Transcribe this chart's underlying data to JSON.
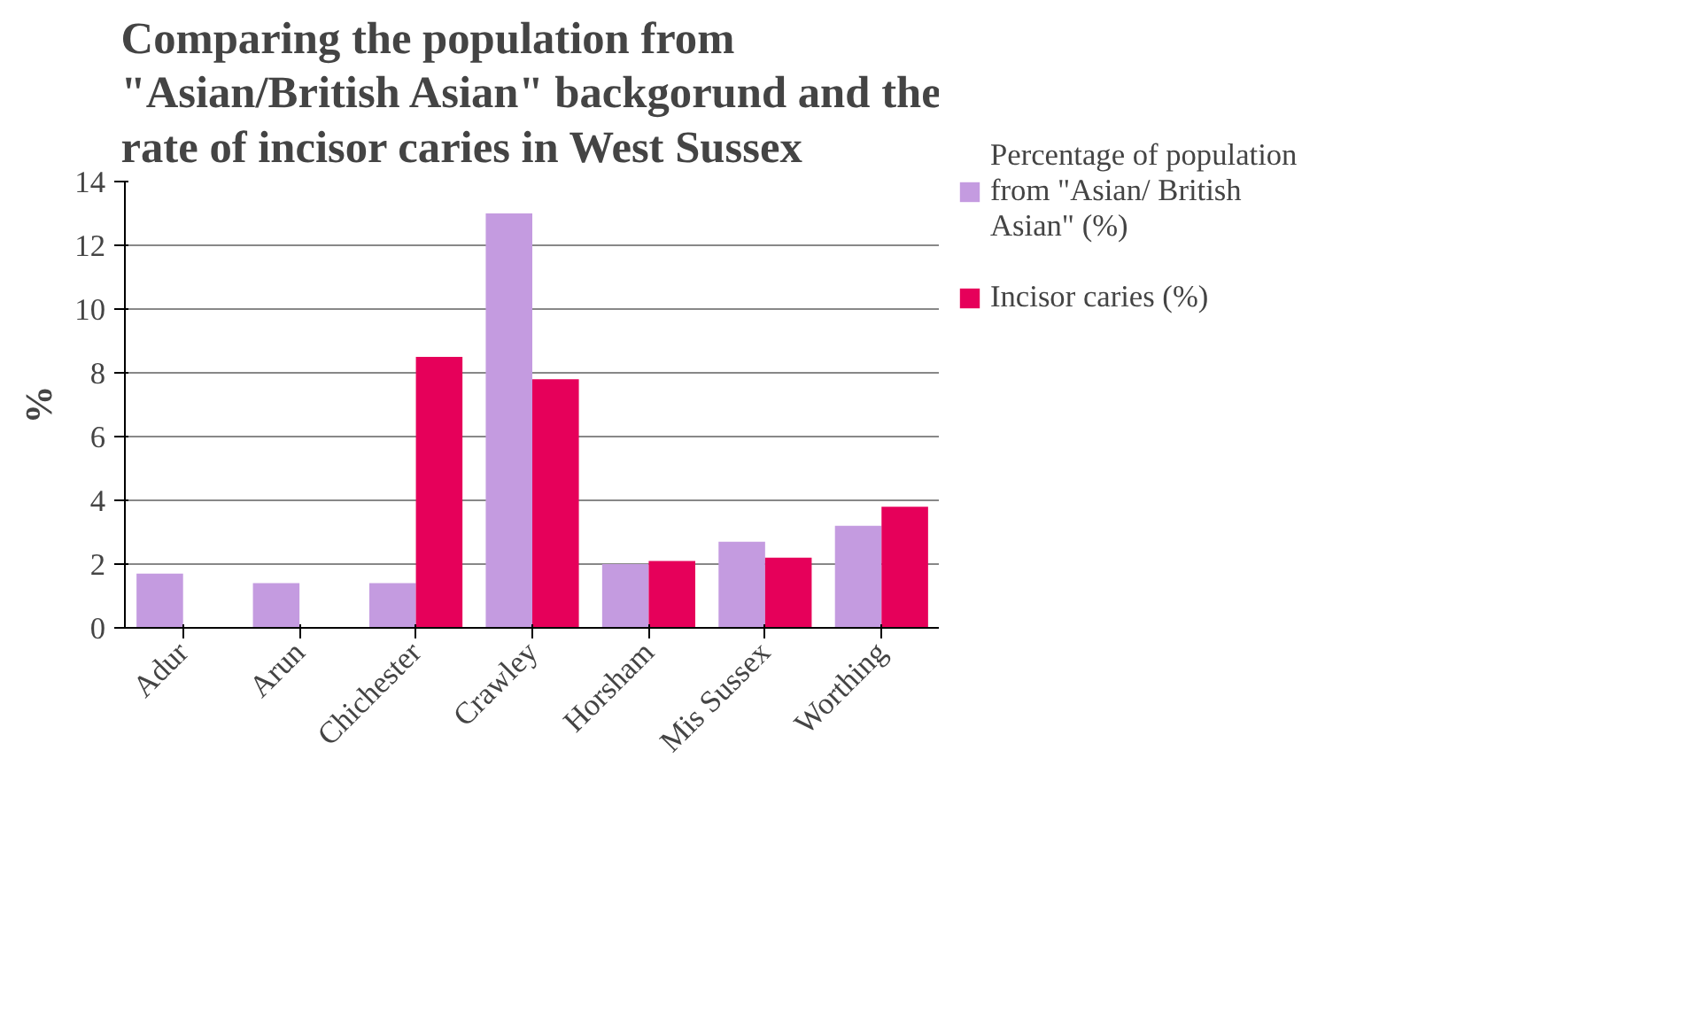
{
  "chart_data": {
    "type": "bar",
    "title": "Comparing the population from \"Asian/British Asian\" backgorund and the rate of incisor caries in West Sussex",
    "ylabel": "%",
    "categories": [
      "Adur",
      "Arun",
      "Chichester",
      "Crawley",
      "Horsham",
      "Mis Sussex",
      "Worthing"
    ],
    "series": [
      {
        "name": "Percentage of population from \"Asian/ British Asian\" (%)",
        "color": "#c49be0",
        "values": [
          1.7,
          1.4,
          1.4,
          13,
          2.0,
          2.7,
          3.2
        ]
      },
      {
        "name": "Incisor caries (%)",
        "color": "#e6005a",
        "values": [
          null,
          null,
          8.5,
          7.8,
          2.1,
          2.2,
          3.8
        ]
      }
    ],
    "ylim": [
      0,
      14
    ],
    "yticks": [
      0,
      2,
      4,
      6,
      8,
      10,
      12,
      14
    ],
    "grid": "y",
    "legend": "right"
  }
}
